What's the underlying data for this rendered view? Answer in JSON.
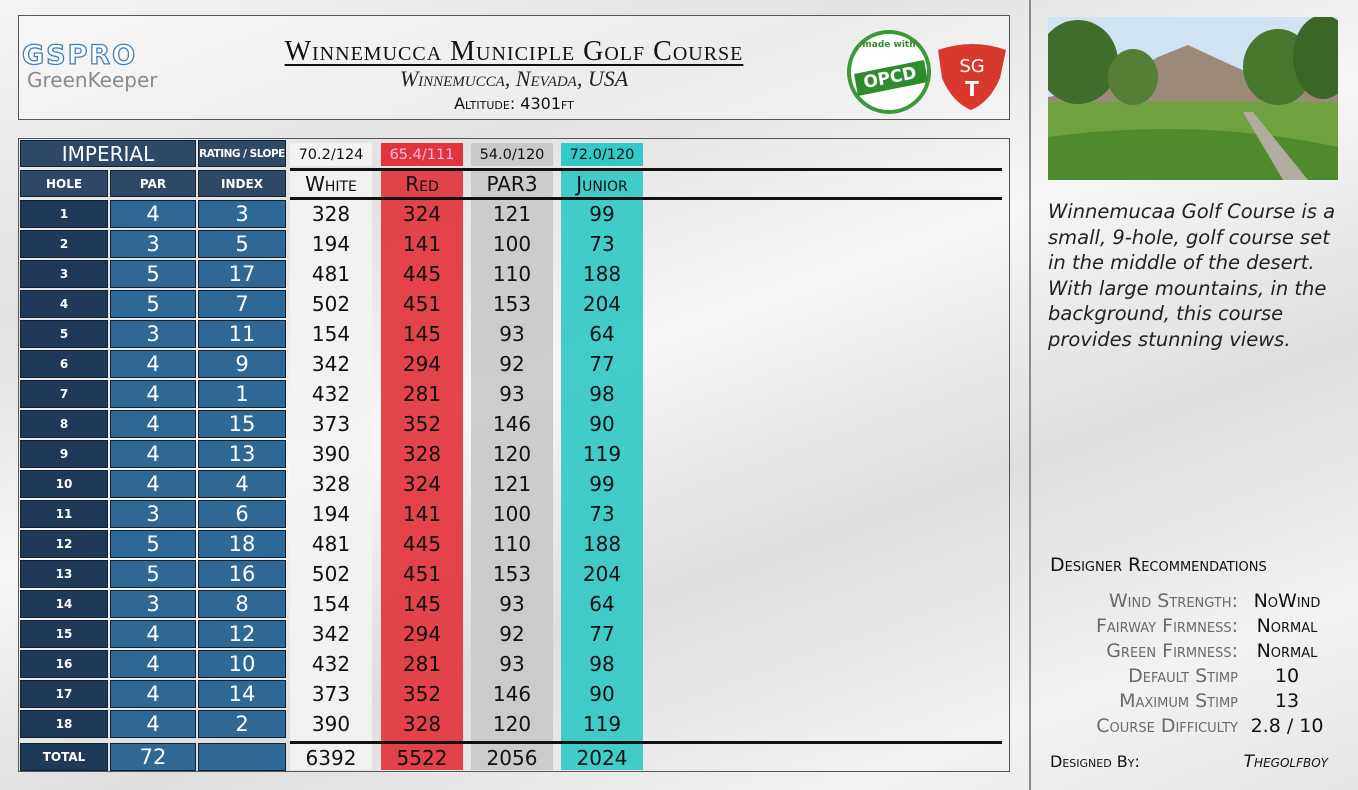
{
  "header": {
    "logo": "GSPRO",
    "logo_sub": "GreenKeeper",
    "title": "Winnemucca Municiple Golf Course",
    "subtitle": "Winnemucca, Nevada, USA",
    "altitude": "Altitude: 4301ft",
    "badge_top": "made with",
    "badge_main": "OPCD",
    "badge_sg": "SG",
    "badge_t": "T"
  },
  "table": {
    "system": "IMPERIAL",
    "rating_label": "RATING / SLOPE",
    "columns": [
      "HOLE",
      "PAR",
      "INDEX"
    ],
    "tees": [
      {
        "name": "White",
        "rating": "70.2/124",
        "color": "#f2f2f2"
      },
      {
        "name": "Red",
        "rating": "65.4/111",
        "color": "#e2343c"
      },
      {
        "name": "PAR3",
        "rating": "54.0/120",
        "color": "#c9c9c9"
      },
      {
        "name": "Junior",
        "rating": "72.0/120",
        "color": "#33c9c6"
      }
    ],
    "rows": [
      {
        "hole": 1,
        "par": 4,
        "index": 3,
        "yards": [
          328,
          324,
          121,
          99
        ]
      },
      {
        "hole": 2,
        "par": 3,
        "index": 5,
        "yards": [
          194,
          141,
          100,
          73
        ]
      },
      {
        "hole": 3,
        "par": 5,
        "index": 17,
        "yards": [
          481,
          445,
          110,
          188
        ]
      },
      {
        "hole": 4,
        "par": 5,
        "index": 7,
        "yards": [
          502,
          451,
          153,
          204
        ]
      },
      {
        "hole": 5,
        "par": 3,
        "index": 11,
        "yards": [
          154,
          145,
          93,
          64
        ]
      },
      {
        "hole": 6,
        "par": 4,
        "index": 9,
        "yards": [
          342,
          294,
          92,
          77
        ]
      },
      {
        "hole": 7,
        "par": 4,
        "index": 1,
        "yards": [
          432,
          281,
          93,
          98
        ]
      },
      {
        "hole": 8,
        "par": 4,
        "index": 15,
        "yards": [
          373,
          352,
          146,
          90
        ]
      },
      {
        "hole": 9,
        "par": 4,
        "index": 13,
        "yards": [
          390,
          328,
          120,
          119
        ]
      },
      {
        "hole": 10,
        "par": 4,
        "index": 4,
        "yards": [
          328,
          324,
          121,
          99
        ]
      },
      {
        "hole": 11,
        "par": 3,
        "index": 6,
        "yards": [
          194,
          141,
          100,
          73
        ]
      },
      {
        "hole": 12,
        "par": 5,
        "index": 18,
        "yards": [
          481,
          445,
          110,
          188
        ]
      },
      {
        "hole": 13,
        "par": 5,
        "index": 16,
        "yards": [
          502,
          451,
          153,
          204
        ]
      },
      {
        "hole": 14,
        "par": 3,
        "index": 8,
        "yards": [
          154,
          145,
          93,
          64
        ]
      },
      {
        "hole": 15,
        "par": 4,
        "index": 12,
        "yards": [
          342,
          294,
          92,
          77
        ]
      },
      {
        "hole": 16,
        "par": 4,
        "index": 10,
        "yards": [
          432,
          281,
          93,
          98
        ]
      },
      {
        "hole": 17,
        "par": 4,
        "index": 14,
        "yards": [
          373,
          352,
          146,
          90
        ]
      },
      {
        "hole": 18,
        "par": 4,
        "index": 2,
        "yards": [
          390,
          328,
          120,
          119
        ]
      }
    ],
    "total": {
      "label": "TOTAL",
      "par": 72,
      "yards": [
        6392,
        5522,
        2056,
        2024
      ]
    }
  },
  "sidebar": {
    "description": "Winnemucaa Golf Course is a small, 9-hole, golf course set in the middle of the desert. With large mountains, in the background, this course provides stunning views.",
    "recommendations_title": "Designer Recommendations",
    "settings": [
      {
        "label": "Wind Strength:",
        "value": "NoWind"
      },
      {
        "label": "Fairway Firmness:",
        "value": "Normal"
      },
      {
        "label": "Green Firmness:",
        "value": "Normal"
      },
      {
        "label": "Default Stimp",
        "value": "10"
      },
      {
        "label": "Maximum Stimp",
        "value": "13"
      },
      {
        "label": "Course Difficulty",
        "value": "2.8 / 10"
      }
    ],
    "designed_by_label": "Designed By:",
    "designer": "Thegolfboy"
  }
}
